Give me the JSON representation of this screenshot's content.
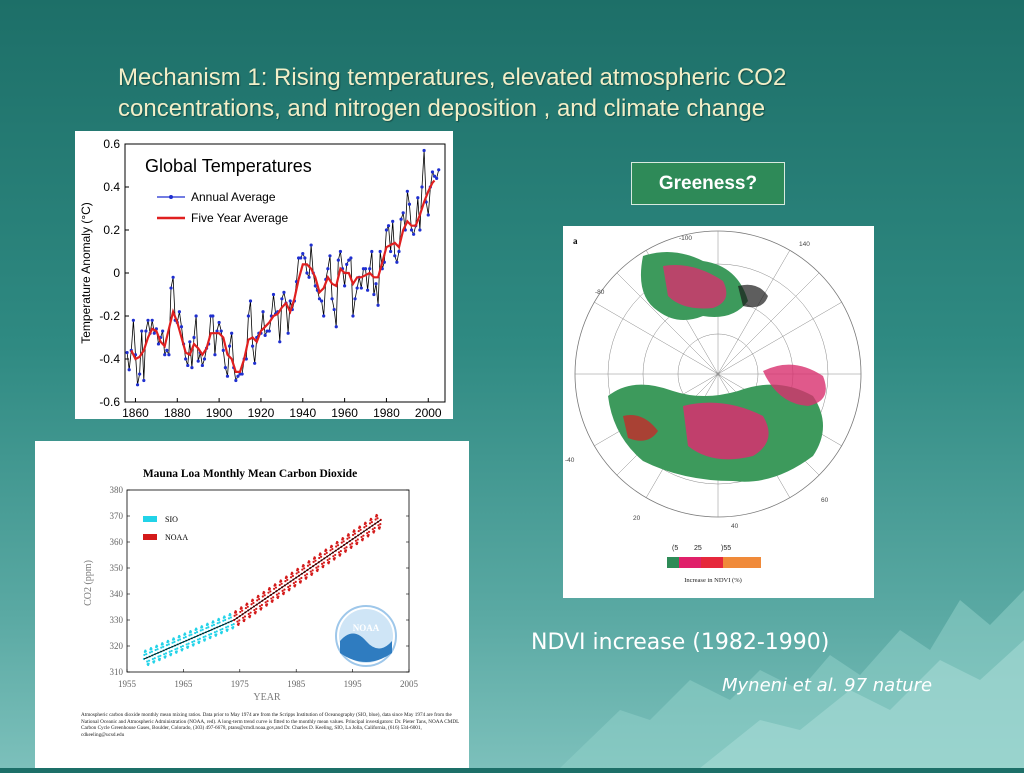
{
  "slide": {
    "title_line1": "Mechanism 1: Rising temperatures, elevated atmospheric CO2",
    "title_line2": "concentrations, and nitrogen deposition , and climate change",
    "greeness_label": "Greeness?",
    "ndvi_caption": "NDVI increase (1982-1990)",
    "citation": "Myneni et al. 97 nature",
    "colors": {
      "title": "#f2efc8",
      "greeness_bg": "#2e8a58"
    }
  },
  "map": {
    "panel_letter": "a",
    "meridian_labels": [
      "-100",
      "140",
      "-80",
      "-40",
      "20",
      "40",
      "60"
    ],
    "legend_ticks": [
      "(5",
      "25",
      ")55"
    ],
    "legend_title": "Increase in NDVI (%)",
    "legend_colors": [
      "#2e8b57",
      "#e0206a",
      "#e6283c",
      "#f08a3a"
    ]
  },
  "chart_data": [
    {
      "type": "line",
      "title": "Global Temperatures",
      "xlabel": "",
      "ylabel": "Temperature Anomaly (°C)",
      "xlim": [
        1855,
        2008
      ],
      "ylim": [
        -0.6,
        0.6
      ],
      "x_ticks": [
        "1860",
        "1880",
        "1900",
        "1920",
        "1940",
        "1960",
        "1980",
        "2000"
      ],
      "y_ticks": [
        "0.6",
        "0.4",
        "0.2",
        "0",
        "-0.2",
        "-0.4",
        "-0.6"
      ],
      "legend": "top-left",
      "series": [
        {
          "name": "Annual Average",
          "color": "#1f2fd0",
          "x": [
            1856,
            1857,
            1858,
            1859,
            1860,
            1861,
            1862,
            1863,
            1864,
            1865,
            1866,
            1867,
            1868,
            1869,
            1870,
            1871,
            1872,
            1873,
            1874,
            1875,
            1876,
            1877,
            1878,
            1879,
            1880,
            1881,
            1882,
            1883,
            1884,
            1885,
            1886,
            1887,
            1888,
            1889,
            1890,
            1891,
            1892,
            1893,
            1894,
            1895,
            1896,
            1897,
            1898,
            1899,
            1900,
            1901,
            1902,
            1903,
            1904,
            1905,
            1906,
            1907,
            1908,
            1909,
            1910,
            1911,
            1912,
            1913,
            1914,
            1915,
            1916,
            1917,
            1918,
            1919,
            1920,
            1921,
            1922,
            1923,
            1924,
            1925,
            1926,
            1927,
            1928,
            1929,
            1930,
            1931,
            1932,
            1933,
            1934,
            1935,
            1936,
            1937,
            1938,
            1939,
            1940,
            1941,
            1942,
            1943,
            1944,
            1945,
            1946,
            1947,
            1948,
            1949,
            1950,
            1951,
            1952,
            1953,
            1954,
            1955,
            1956,
            1957,
            1958,
            1959,
            1960,
            1961,
            1962,
            1963,
            1964,
            1965,
            1966,
            1967,
            1968,
            1969,
            1970,
            1971,
            1972,
            1973,
            1974,
            1975,
            1976,
            1977,
            1978,
            1979,
            1980,
            1981,
            1982,
            1983,
            1984,
            1985,
            1986,
            1987,
            1988,
            1989,
            1990,
            1991,
            1992,
            1993,
            1994,
            1995,
            1996,
            1997,
            1998,
            1999,
            2000,
            2001,
            2002,
            2003,
            2004,
            2005
          ],
          "y": [
            -0.37,
            -0.45,
            -0.36,
            -0.22,
            -0.38,
            -0.52,
            -0.47,
            -0.27,
            -0.5,
            -0.27,
            -0.22,
            -0.28,
            -0.22,
            -0.28,
            -0.26,
            -0.33,
            -0.3,
            -0.27,
            -0.38,
            -0.36,
            -0.38,
            -0.07,
            -0.02,
            -0.22,
            -0.23,
            -0.18,
            -0.25,
            -0.33,
            -0.4,
            -0.43,
            -0.32,
            -0.44,
            -0.3,
            -0.2,
            -0.41,
            -0.37,
            -0.43,
            -0.4,
            -0.35,
            -0.33,
            -0.2,
            -0.2,
            -0.38,
            -0.27,
            -0.23,
            -0.27,
            -0.36,
            -0.44,
            -0.48,
            -0.34,
            -0.28,
            -0.44,
            -0.5,
            -0.48,
            -0.47,
            -0.47,
            -0.4,
            -0.4,
            -0.2,
            -0.13,
            -0.34,
            -0.42,
            -0.3,
            -0.28,
            -0.28,
            -0.18,
            -0.29,
            -0.27,
            -0.27,
            -0.2,
            -0.1,
            -0.19,
            -0.18,
            -0.32,
            -0.12,
            -0.09,
            -0.14,
            -0.28,
            -0.13,
            -0.17,
            -0.13,
            -0.04,
            0.07,
            0.07,
            0.09,
            0.07,
            0.0,
            -0.02,
            0.13,
            0.0,
            -0.06,
            -0.08,
            -0.12,
            -0.13,
            -0.2,
            -0.03,
            0.02,
            0.08,
            -0.12,
            -0.17,
            -0.25,
            0.06,
            0.1,
            0.02,
            -0.06,
            0.04,
            0.06,
            0.07,
            -0.2,
            -0.12,
            -0.07,
            -0.02,
            -0.07,
            0.02,
            0.02,
            -0.08,
            0.02,
            0.1,
            -0.1,
            -0.05,
            -0.15,
            0.1,
            0.02,
            0.05,
            0.2,
            0.22,
            0.1,
            0.24,
            0.08,
            0.05,
            0.1,
            0.25,
            0.28,
            0.2,
            0.38,
            0.32,
            0.2,
            0.18,
            0.22,
            0.35,
            0.2,
            0.4,
            0.57,
            0.33,
            0.27,
            0.4,
            0.47,
            0.45,
            0.44,
            0.48
          ]
        },
        {
          "name": "Five Year Average",
          "color": "#e02020",
          "x": [
            1858,
            1860,
            1862,
            1864,
            1866,
            1868,
            1870,
            1872,
            1874,
            1876,
            1878,
            1880,
            1882,
            1884,
            1886,
            1888,
            1890,
            1892,
            1894,
            1896,
            1898,
            1900,
            1902,
            1904,
            1906,
            1908,
            1910,
            1912,
            1914,
            1916,
            1918,
            1920,
            1922,
            1924,
            1926,
            1928,
            1930,
            1932,
            1934,
            1936,
            1938,
            1940,
            1942,
            1944,
            1946,
            1948,
            1950,
            1952,
            1954,
            1956,
            1958,
            1960,
            1962,
            1964,
            1966,
            1968,
            1970,
            1972,
            1974,
            1976,
            1978,
            1980,
            1982,
            1984,
            1986,
            1988,
            1990,
            1992,
            1994,
            1996,
            1998,
            2000,
            2002,
            2003
          ],
          "y": [
            -0.36,
            -0.4,
            -0.39,
            -0.36,
            -0.3,
            -0.26,
            -0.27,
            -0.32,
            -0.34,
            -0.26,
            -0.18,
            -0.23,
            -0.3,
            -0.37,
            -0.38,
            -0.33,
            -0.35,
            -0.38,
            -0.35,
            -0.28,
            -0.28,
            -0.28,
            -0.3,
            -0.38,
            -0.4,
            -0.46,
            -0.46,
            -0.4,
            -0.31,
            -0.3,
            -0.32,
            -0.27,
            -0.25,
            -0.23,
            -0.2,
            -0.19,
            -0.16,
            -0.14,
            -0.18,
            -0.12,
            -0.03,
            0.04,
            0.04,
            0.02,
            -0.02,
            -0.09,
            -0.07,
            -0.02,
            -0.05,
            -0.06,
            0.02,
            0.0,
            0.0,
            -0.05,
            -0.02,
            -0.02,
            -0.01,
            0.0,
            -0.02,
            -0.02,
            0.05,
            0.12,
            0.13,
            0.14,
            0.12,
            0.2,
            0.24,
            0.22,
            0.22,
            0.27,
            0.33,
            0.38,
            0.42,
            0.43
          ]
        }
      ]
    },
    {
      "type": "scatter",
      "title": "Mauna Loa Monthly Mean Carbon Dioxide",
      "xlabel": "YEAR",
      "ylabel": "CO2 (ppm)",
      "xlim": [
        1955,
        2005
      ],
      "ylim": [
        310,
        380
      ],
      "x_ticks": [
        "1955",
        "1965",
        "1975",
        "1985",
        "1995",
        "2005"
      ],
      "y_ticks": [
        "380",
        "370",
        "360",
        "350",
        "340",
        "330",
        "320",
        "310"
      ],
      "legend": "top-left",
      "series": [
        {
          "name": "SIO",
          "color": "#22d3e8",
          "x_range": [
            1958,
            1974
          ],
          "trend_start": 315.0,
          "trend_end": 330.0
        },
        {
          "name": "NOAA",
          "color": "#d41a1a",
          "x_range": [
            1974,
            2000
          ],
          "trend_start": 330.0,
          "trend_end": 368.5
        }
      ],
      "logo_text": "NOAA",
      "footnote": "Atmospheric carbon dioxide monthly mean mixing ratios. Data prior to May 1974 are from the Scripps Institution of Oceanography (SIO, blue), data since May 1974 are from the National Oceanic and Atmospheric Administration (NOAA, red). A long-term trend curve is fitted to the monthly mean values. Principal investigators: Dr. Pieter Tans, NOAA CMDL Carbon Cycle Greenhouse Gases, Boulder, Colorado, (303) 497-6678, ptans@cmdl.noaa.gov,and Dr. Charles D. Keeling, SIO, La Jolla, California, (616) 534-6001, cdkeeling@ucsd.edu"
    }
  ]
}
